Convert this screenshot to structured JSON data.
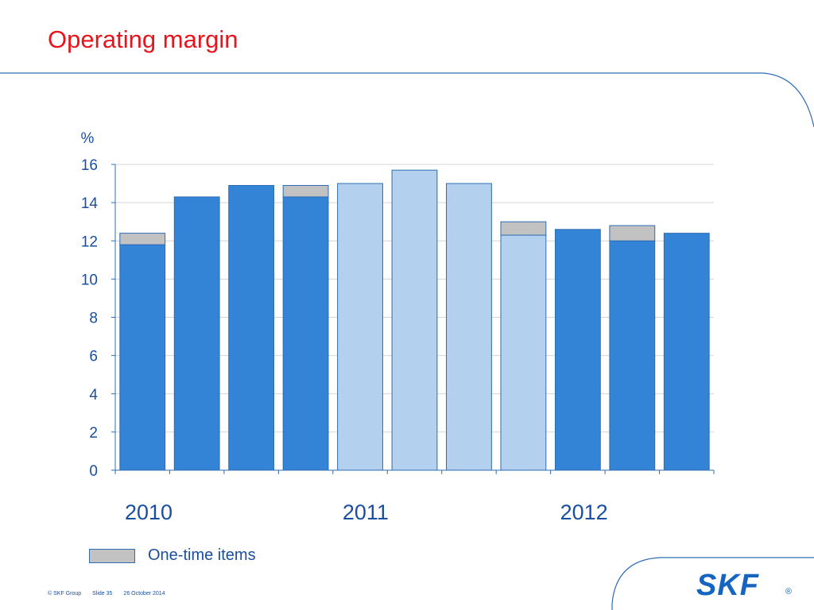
{
  "slide": {
    "title": "Operating margin",
    "footer": {
      "copyright": "© SKF Group",
      "slide": "Slide 35",
      "date": "26 October 2014"
    },
    "logo_text": "SKF",
    "logo_mark": "®",
    "colors": {
      "title": "#e8141c",
      "bar_dark": "#3383d6",
      "bar_light": "#b3d0ee",
      "one_time": "#c2c2c2",
      "text": "#1a4fa0"
    }
  },
  "legend": {
    "one_time_label": "One-time items"
  },
  "chart_data": {
    "type": "bar",
    "stacked": true,
    "ylabel": "%",
    "ylim": [
      0,
      16
    ],
    "yticks": [
      0,
      2,
      4,
      6,
      8,
      10,
      12,
      14,
      16
    ],
    "grid": true,
    "legend_position": "bottom-left",
    "year_labels": [
      {
        "label": "2010",
        "first_bar": 0
      },
      {
        "label": "2011",
        "first_bar": 4
      },
      {
        "label": "2012",
        "first_bar": 8
      }
    ],
    "bars": [
      {
        "value": 11.8,
        "one_time": 0.6,
        "shade": "dark"
      },
      {
        "value": 14.3,
        "one_time": 0,
        "shade": "dark"
      },
      {
        "value": 14.9,
        "one_time": 0,
        "shade": "dark"
      },
      {
        "value": 14.3,
        "one_time": 0.6,
        "shade": "dark"
      },
      {
        "value": 15.0,
        "one_time": 0,
        "shade": "light"
      },
      {
        "value": 15.7,
        "one_time": 0,
        "shade": "light"
      },
      {
        "value": 15.0,
        "one_time": 0,
        "shade": "light"
      },
      {
        "value": 12.3,
        "one_time": 0.7,
        "shade": "light"
      },
      {
        "value": 12.6,
        "one_time": 0,
        "shade": "dark"
      },
      {
        "value": 12.0,
        "one_time": 0.8,
        "shade": "dark"
      },
      {
        "value": 12.4,
        "one_time": 0,
        "shade": "dark"
      }
    ],
    "series": [
      {
        "name": "One-time items"
      }
    ]
  }
}
